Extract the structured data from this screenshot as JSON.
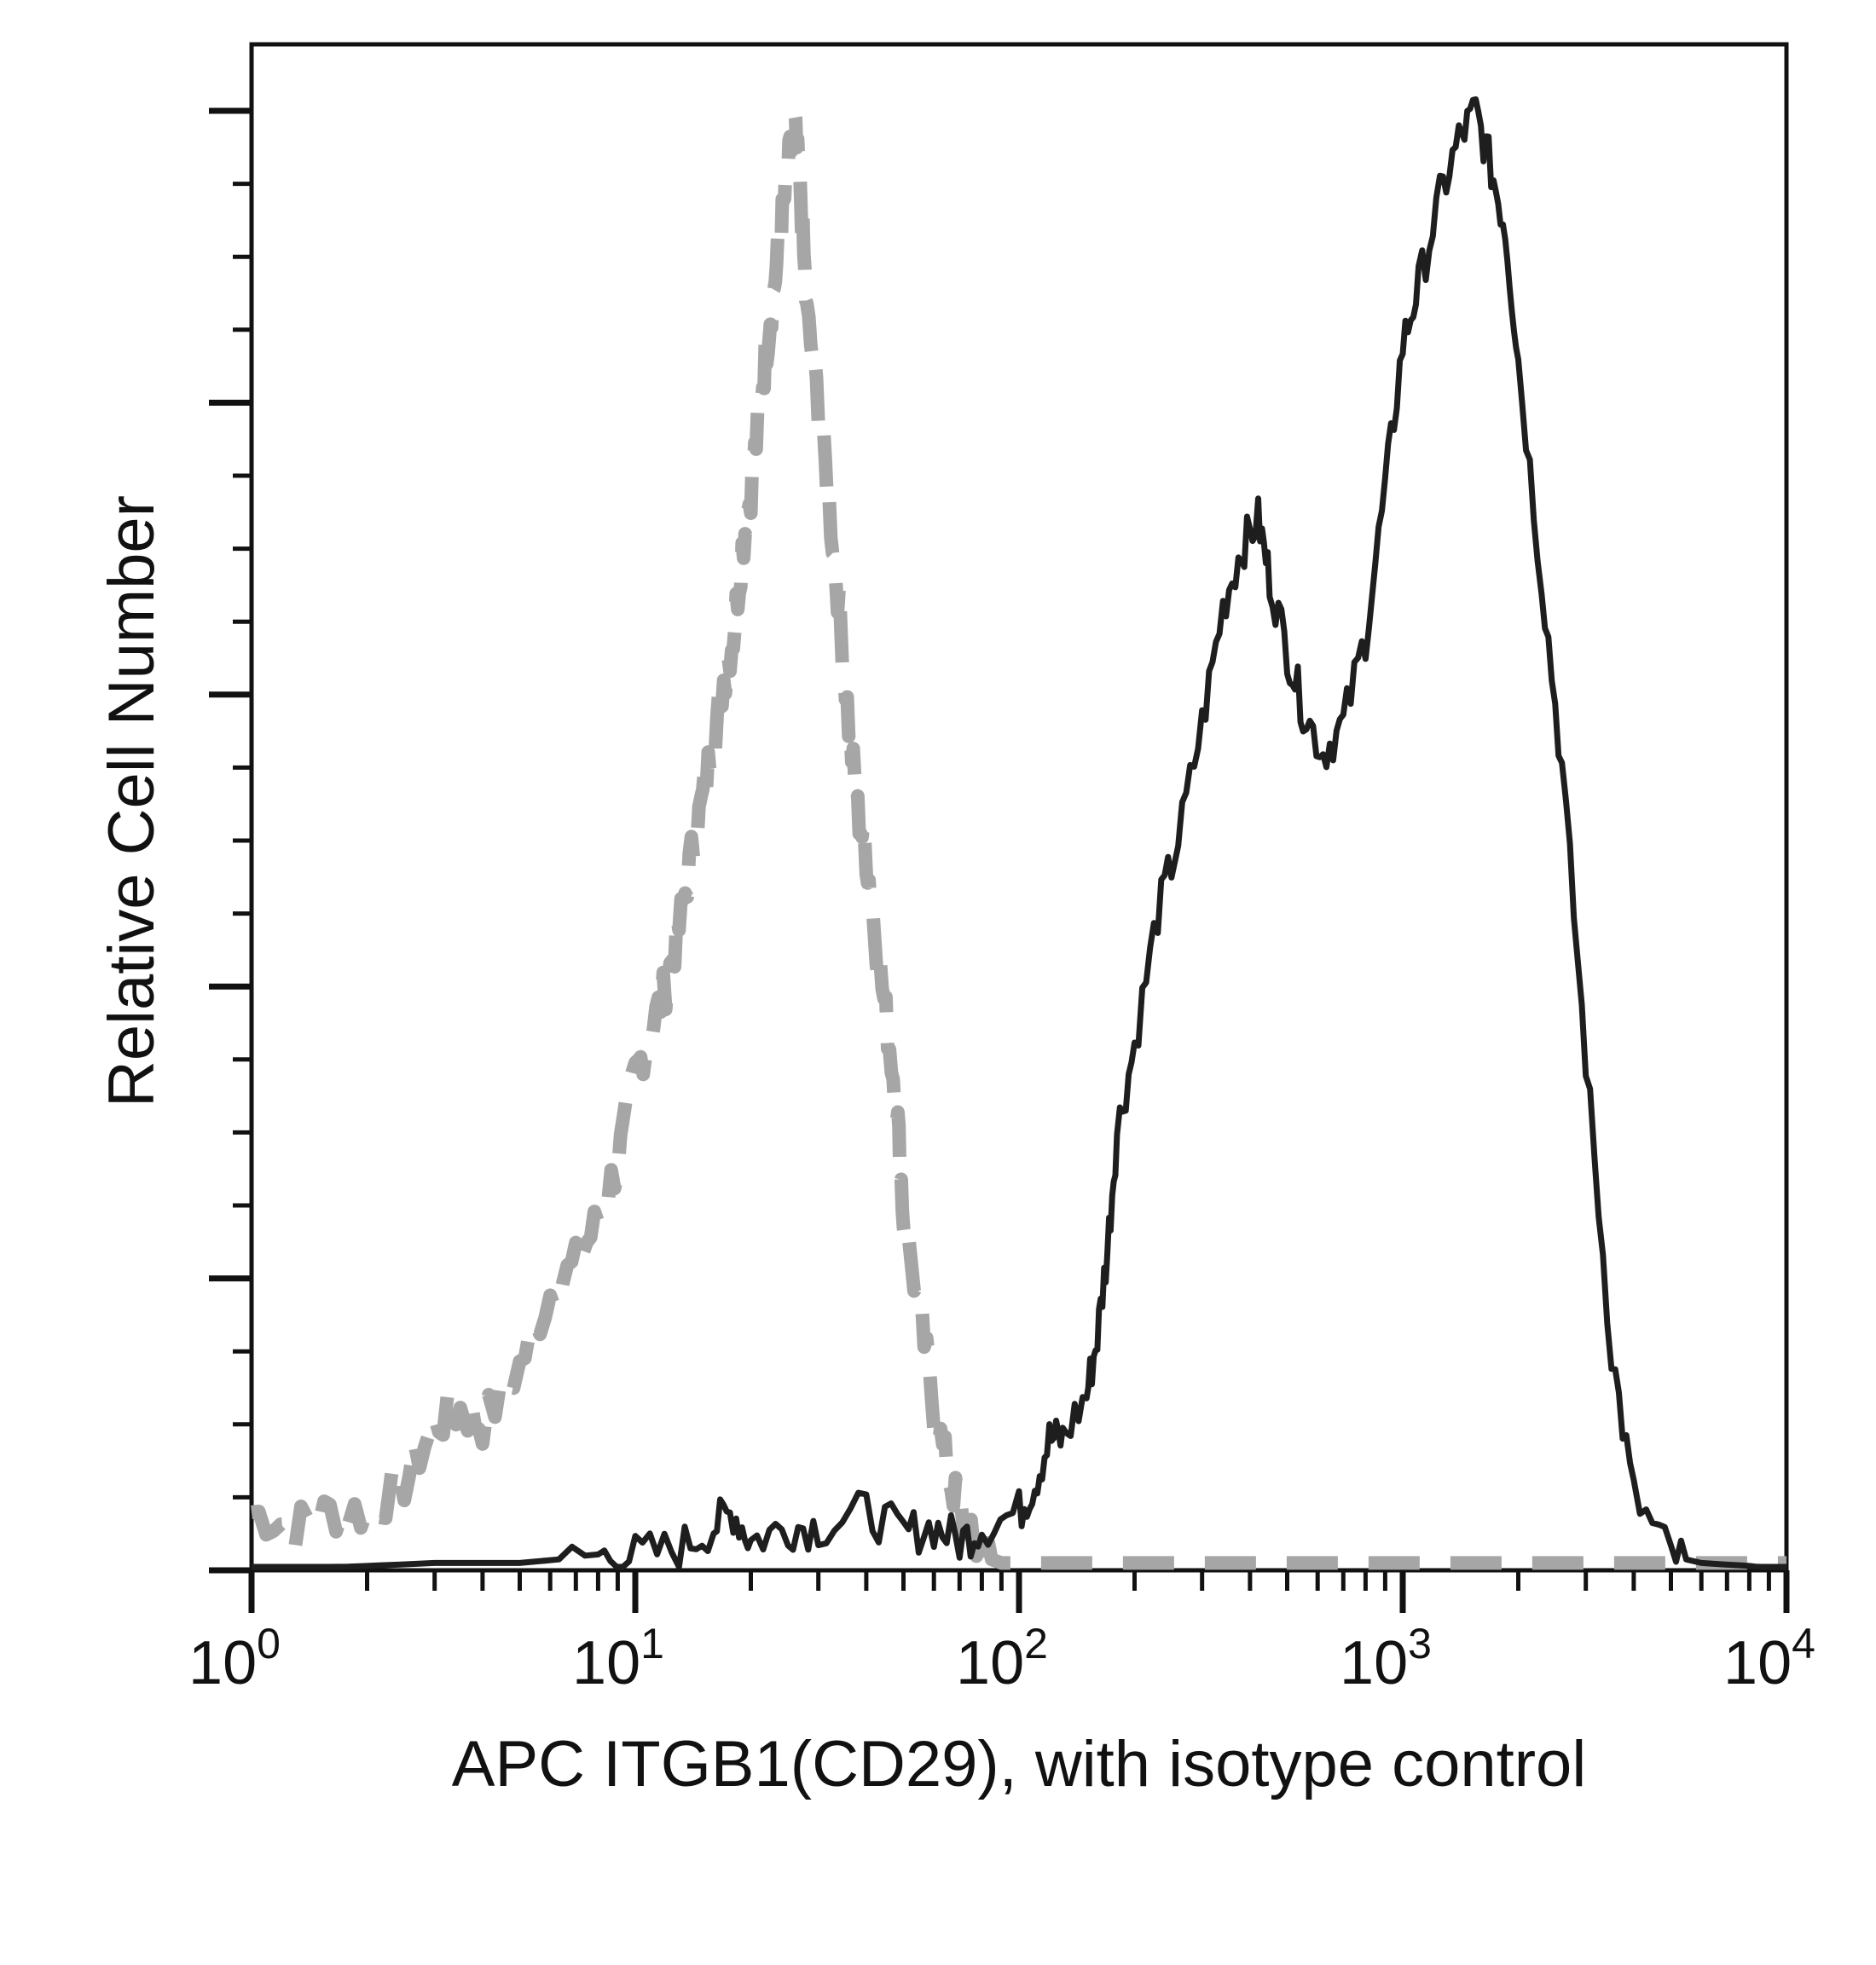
{
  "chart_data": {
    "type": "line",
    "title": "",
    "xlabel": "APC ITGB1(CD29), with isotype control",
    "ylabel": "Relative Cell Number",
    "x_scale": "log",
    "xlim": [
      1,
      10000
    ],
    "ylim": [
      0,
      100
    ],
    "x_ticks": [
      {
        "base": "10",
        "exp": "0"
      },
      {
        "base": "10",
        "exp": "1"
      },
      {
        "base": "10",
        "exp": "2"
      },
      {
        "base": "10",
        "exp": "3"
      },
      {
        "base": "10",
        "exp": "4"
      }
    ],
    "grid": false,
    "legend": "none",
    "series": [
      {
        "color": "#a6a6a6",
        "style": "dashed",
        "x": [
          1,
          1.3,
          1.6,
          2,
          2.5,
          3,
          3.5,
          4,
          5,
          6,
          7,
          8,
          9,
          10,
          11,
          12,
          13,
          14,
          15,
          16,
          17,
          18,
          19,
          20,
          21,
          22,
          23,
          24,
          25,
          26,
          27,
          28,
          30,
          32,
          34,
          36,
          38,
          40,
          42,
          45,
          48,
          50,
          55,
          60,
          65,
          70,
          75,
          80,
          90,
          100,
          150,
          300,
          1000,
          10000
        ],
        "values": [
          4,
          3,
          4,
          4,
          6,
          10,
          11,
          10,
          14,
          19,
          21,
          24,
          28,
          34,
          37,
          40,
          44,
          49,
          53,
          57,
          61,
          64,
          70,
          74,
          79,
          84,
          88,
          92,
          96,
          99,
          94,
          86,
          80,
          73,
          66,
          58,
          52,
          49,
          44,
          38,
          32,
          24,
          18,
          11,
          7,
          4,
          2,
          1,
          0.5,
          0.5,
          0.5,
          0.5,
          0.5,
          0.5
        ]
      },
      {
        "color": "#1e1e1e",
        "style": "solid",
        "x": [
          1,
          2,
          3,
          5,
          8,
          10,
          13,
          16,
          18,
          20,
          25,
          30,
          40,
          50,
          60,
          70,
          80,
          100,
          110,
          120,
          130,
          150,
          160,
          170,
          180,
          200,
          230,
          260,
          300,
          340,
          380,
          420,
          450,
          500,
          550,
          620,
          700,
          800,
          900,
          1000,
          1100,
          1250,
          1400,
          1550,
          1700,
          1850,
          2000,
          2300,
          2600,
          3000,
          3500,
          4000,
          5000,
          6000,
          8000,
          10000
        ],
        "values": [
          0,
          0.3,
          0.5,
          0.5,
          1,
          1,
          1.5,
          3,
          4,
          2,
          3,
          3,
          4,
          2.5,
          3,
          2,
          3,
          4,
          6,
          9,
          9,
          12,
          16,
          22,
          30,
          36,
          45,
          50,
          58,
          66,
          70,
          72,
          68,
          63,
          59,
          56,
          58,
          64,
          74,
          84,
          88,
          94,
          98,
          100,
          96,
          92,
          83,
          68,
          55,
          35,
          15,
          5,
          1,
          0.5,
          0.3,
          0
        ]
      }
    ]
  }
}
